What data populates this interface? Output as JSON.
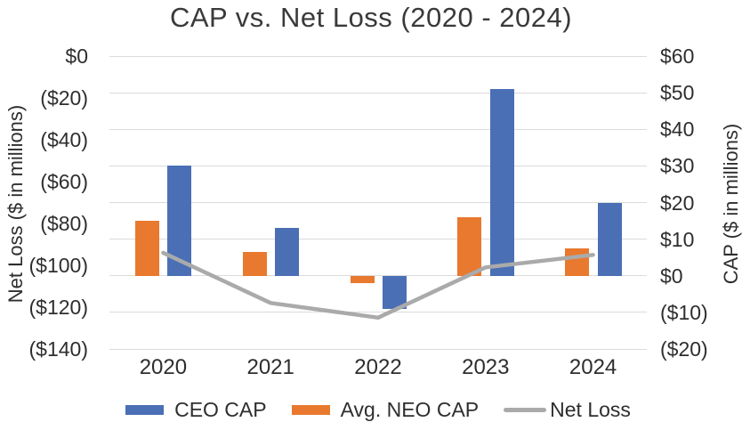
{
  "title": "CAP vs. Net Loss (2020 - 2024)",
  "chart_data": {
    "type": "combo",
    "title": "CAP vs. Net Loss (2020 - 2024)",
    "categories": [
      "2020",
      "2021",
      "2022",
      "2023",
      "2024"
    ],
    "series": [
      {
        "name": "CEO CAP",
        "type": "bar",
        "axis": "right",
        "slot": 1,
        "color": "#4a6fb5",
        "values": [
          30,
          13,
          -9,
          51,
          20
        ]
      },
      {
        "name": "Avg. NEO CAP",
        "type": "bar",
        "axis": "right",
        "slot": 0,
        "color": "#e8792e",
        "values": [
          15,
          6.5,
          -2,
          16,
          7.5
        ]
      },
      {
        "name": "Net Loss",
        "type": "line",
        "axis": "left",
        "color": "#aaaaaa",
        "values": [
          -94,
          -118,
          -125,
          -101,
          -95
        ]
      }
    ],
    "left_axis": {
      "title": "Net Loss ($ in millions)",
      "max": 0,
      "min": -140,
      "step": 20,
      "ticks": [
        "$0",
        "($20)",
        "($40)",
        "($60)",
        "($80)",
        "($100)",
        "($120)",
        "($140)"
      ]
    },
    "right_axis": {
      "title": "CAP ($ in millions)",
      "max": 60,
      "min": -20,
      "step": 10,
      "ticks": [
        "$60",
        "$50",
        "$40",
        "$30",
        "$20",
        "$10",
        "$0",
        "($10)",
        "($20)"
      ]
    },
    "grid": true,
    "legend_position": "bottom",
    "colors": {
      "gridline": "#dbdbdb",
      "text": "#2e2e2e",
      "title_text": "#3a3a3a",
      "background": "#ffffff"
    }
  }
}
